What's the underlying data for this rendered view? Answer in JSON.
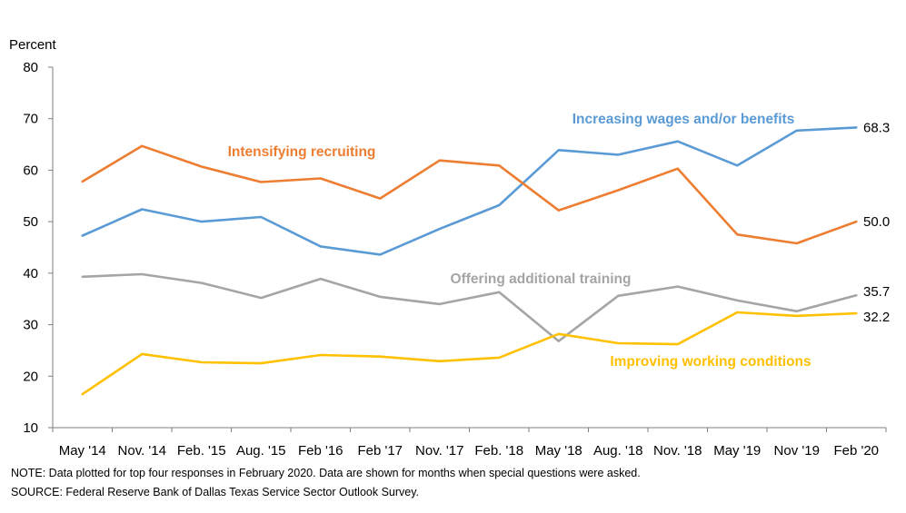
{
  "chart_data": {
    "type": "line",
    "ylabel": "Percent",
    "ylim": [
      10,
      80
    ],
    "yticks": [
      10,
      20,
      30,
      40,
      50,
      60,
      70,
      80
    ],
    "categories": [
      "May '14",
      "Nov. '14",
      "Feb. '15",
      "Aug. '15",
      "Feb '16",
      "Feb '17",
      "Nov. '17",
      "Feb. '18",
      "May '18",
      "Aug. '18",
      "Nov. '18",
      "May '19",
      "Nov '19",
      "Feb '20"
    ],
    "grid": false,
    "series": [
      {
        "name": "Increasing wages and/or benefits",
        "color": "#5B9BD5",
        "values": [
          47.3,
          52.4,
          50.0,
          50.9,
          45.2,
          43.6,
          48.6,
          53.2,
          63.9,
          63.0,
          65.6,
          60.9,
          67.7,
          68.3
        ],
        "end_label": "68.3"
      },
      {
        "name": "Intensifying recruiting",
        "color": "#ED7D31",
        "values": [
          57.8,
          64.7,
          60.7,
          57.7,
          58.4,
          54.5,
          61.9,
          60.9,
          52.2,
          56.1,
          60.3,
          47.5,
          45.8,
          50.0
        ],
        "end_label": "50.0"
      },
      {
        "name": "Offering additional training",
        "color": "#A5A5A5",
        "values": [
          39.3,
          39.8,
          38.1,
          35.2,
          38.9,
          35.4,
          34.0,
          36.3,
          26.8,
          35.6,
          37.4,
          34.7,
          32.6,
          35.7
        ],
        "end_label": "35.7"
      },
      {
        "name": "Improving working conditions",
        "color": "#FFC000",
        "values": [
          16.5,
          24.3,
          22.7,
          22.5,
          24.1,
          23.8,
          22.9,
          23.6,
          28.2,
          26.4,
          26.2,
          32.4,
          31.7,
          32.2
        ],
        "end_label": "32.2"
      }
    ]
  },
  "notes": {
    "note": "NOTE: Data plotted for top four responses in February 2020. Data are shown for months when special questions were asked.",
    "source": "SOURCE: Federal Reserve Bank of Dallas Texas Service Sector Outlook Survey."
  }
}
